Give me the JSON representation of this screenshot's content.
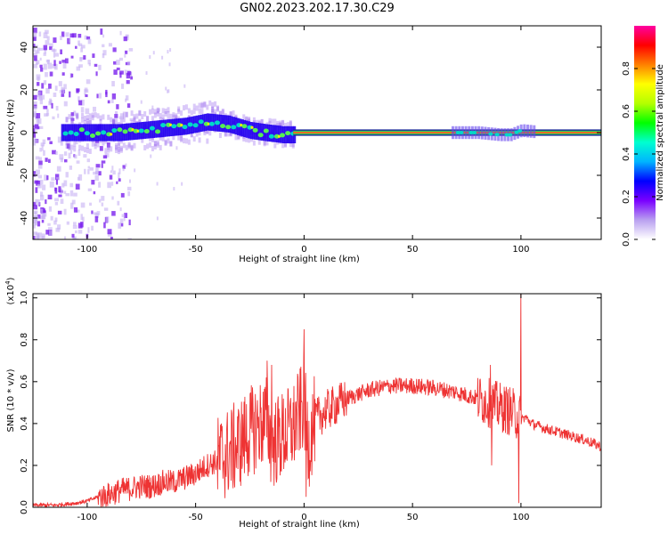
{
  "title": "GN02.2023.202.17.30.C29",
  "chart_data": [
    {
      "type": "heatmap",
      "xlabel": "Height of straight line (km)",
      "ylabel": "Frequency (Hz)",
      "xlim": [
        -125,
        137
      ],
      "ylim": [
        -50,
        50
      ],
      "xticks": [
        -100,
        -50,
        0,
        50,
        100
      ],
      "yticks": [
        -40,
        -20,
        0,
        20,
        40
      ],
      "colorbar": {
        "label": "Normalized spectral amplitude",
        "range": [
          0,
          1
        ],
        "ticks": [
          "0.0",
          "0.2",
          "0.4",
          "0.6",
          "0.8"
        ],
        "colors": [
          "#ffffff",
          "#b9a0f0",
          "#7a00ff",
          "#0000ff",
          "#00b4ff",
          "#00ffd0",
          "#00ff00",
          "#b4ff00",
          "#ffff00",
          "#ff8000",
          "#ff0000",
          "#ff00a0"
        ]
      },
      "ridge": {
        "x": [
          -105,
          -95,
          -85,
          -75,
          -65,
          -55,
          -45,
          -35,
          -25,
          -18,
          -10,
          -5,
          0,
          10,
          50,
          70,
          80,
          90,
          95,
          100,
          110,
          137
        ],
        "y": [
          0,
          0,
          0,
          1,
          2,
          3,
          5,
          4,
          1,
          0,
          -1,
          -1,
          0,
          0,
          0,
          0,
          0,
          -1,
          -1,
          1,
          0,
          0
        ]
      }
    },
    {
      "type": "line",
      "xlabel": "Height of straight line (km)",
      "ylabel": "SNR (10 * v/v)",
      "yscale_label": "(x10",
      "yscale_exp": "4",
      "xlim": [
        -125,
        137
      ],
      "ylim": [
        0,
        1.02
      ],
      "xticks": [
        -100,
        -50,
        0,
        50,
        100
      ],
      "yticks": [
        "0.0",
        "0.2",
        "0.4",
        "0.6",
        "0.8",
        "1.0"
      ],
      "color": "#ee3333",
      "series": [
        {
          "x": [
            -125,
            -115,
            -105,
            -100,
            -95,
            -90,
            -85,
            -80,
            -75,
            -70,
            -65,
            -60,
            -55,
            -50,
            -45,
            -40,
            -35,
            -30,
            -25,
            -20,
            -17,
            -15,
            -10,
            -5,
            -2,
            0,
            2,
            5,
            10,
            20,
            30,
            40,
            50,
            60,
            70,
            80,
            85,
            90,
            95,
            98,
            100,
            102,
            105,
            110,
            120,
            130,
            137
          ],
          "y": [
            0.01,
            0.01,
            0.02,
            0.03,
            0.05,
            0.06,
            0.08,
            0.09,
            0.1,
            0.1,
            0.12,
            0.12,
            0.14,
            0.16,
            0.2,
            0.22,
            0.26,
            0.3,
            0.36,
            0.4,
            0.42,
            0.3,
            0.34,
            0.38,
            0.45,
            0.5,
            0.3,
            0.42,
            0.46,
            0.52,
            0.56,
            0.58,
            0.58,
            0.57,
            0.55,
            0.52,
            0.5,
            0.48,
            0.46,
            0.44,
            0.42,
            0.43,
            0.4,
            0.38,
            0.35,
            0.32,
            0.29
          ]
        }
      ],
      "spikes": [
        {
          "x": -17,
          "y": 0.7
        },
        {
          "x": -15,
          "y": 0.68
        },
        {
          "x": 0,
          "y": 0.85
        },
        {
          "x": 1,
          "y": 0.05
        },
        {
          "x": 86,
          "y": 0.68
        },
        {
          "x": 86.5,
          "y": 0.2
        },
        {
          "x": 99,
          "y": 0.02
        },
        {
          "x": 100,
          "y": 1.02
        }
      ]
    }
  ]
}
